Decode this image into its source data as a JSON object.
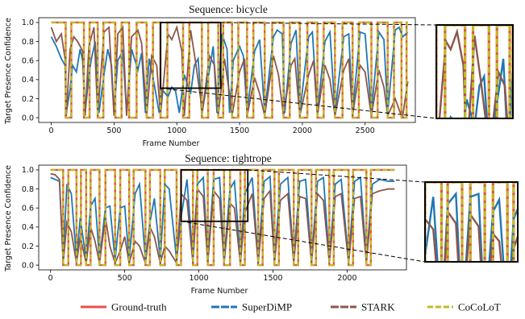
{
  "colors": {
    "ground_truth": "#e8504a",
    "superdimp": "#1f77b4",
    "stark": "#8c564b",
    "cocolot": "#bcbd22"
  },
  "legend": [
    "Ground-truth",
    "SuperDiMP",
    "STARK",
    "CoCoLoT"
  ],
  "chart_data": [
    {
      "type": "line",
      "title": "Sequence: bicycle",
      "xlabel": "Frame Number",
      "ylabel": "Target Presence Confidence",
      "xlim": [
        -100,
        2900
      ],
      "ylim": [
        -0.05,
        1.05
      ],
      "xticks": [
        0,
        500,
        1000,
        1500,
        2000,
        2500
      ],
      "yticks": [
        0.0,
        0.2,
        0.4,
        0.6,
        0.8,
        1.0
      ],
      "ytick_labels": [
        "0.0",
        "0.2",
        "0.4",
        "0.6",
        "0.8",
        "1.0"
      ],
      "x_end": 2840,
      "absent_intervals": [
        [
          115,
          160
        ],
        [
          260,
          305
        ],
        [
          370,
          415
        ],
        [
          510,
          560
        ],
        [
          620,
          680
        ],
        [
          760,
          810
        ],
        [
          870,
          925
        ],
        [
          1050,
          1100
        ],
        [
          1200,
          1250
        ],
        [
          1330,
          1370
        ],
        [
          1440,
          1490
        ],
        [
          1560,
          1610
        ],
        [
          1700,
          1760
        ],
        [
          1850,
          1900
        ],
        [
          1980,
          2040
        ],
        [
          2120,
          2170
        ],
        [
          2260,
          2320
        ],
        [
          2400,
          2450
        ],
        [
          2550,
          2600
        ],
        [
          2680,
          2730
        ],
        [
          2790,
          2830
        ]
      ],
      "superdimp": {
        "x": [
          0,
          40,
          80,
          110,
          120,
          150,
          170,
          200,
          230,
          250,
          270,
          300,
          320,
          350,
          380,
          420,
          450,
          480,
          500,
          530,
          570,
          600,
          640,
          690,
          720,
          750,
          780,
          820,
          860,
          880,
          930,
          960,
          990,
          1020,
          1060,
          1110,
          1140,
          1170,
          1200,
          1260,
          1290,
          1320,
          1360,
          1400,
          1420,
          1450,
          1500,
          1530,
          1560,
          1620,
          1660,
          1700,
          1770,
          1800,
          1840,
          1860,
          1910,
          1950,
          1980,
          2050,
          2080,
          2120,
          2180,
          2220,
          2260,
          2330,
          2370,
          2400,
          2460,
          2500,
          2550,
          2610,
          2650,
          2680,
          2740,
          2770,
          2800,
          2840
        ],
        "y": [
          0.85,
          0.75,
          0.62,
          0.55,
          0.05,
          0.3,
          0.55,
          0.48,
          0.72,
          0.6,
          0.05,
          0.45,
          0.62,
          0.8,
          0.05,
          0.45,
          0.72,
          0.55,
          0.05,
          0.6,
          0.7,
          0.05,
          0.72,
          0.5,
          0.68,
          0.05,
          0.62,
          0.35,
          0.05,
          0.3,
          0.22,
          0.32,
          0.28,
          0.05,
          0.45,
          0.25,
          0.55,
          0.62,
          0.05,
          0.5,
          0.75,
          0.05,
          0.88,
          0.72,
          0.05,
          0.6,
          0.75,
          0.65,
          0.05,
          0.7,
          0.82,
          0.05,
          0.85,
          0.92,
          0.88,
          0.05,
          0.78,
          0.92,
          0.05,
          0.85,
          0.9,
          0.05,
          0.8,
          0.9,
          0.05,
          0.85,
          0.88,
          0.05,
          0.9,
          0.88,
          0.05,
          0.9,
          0.82,
          0.05,
          0.92,
          0.95,
          0.85,
          0.9
        ]
      },
      "stark": {
        "x": [
          0,
          40,
          80,
          110,
          120,
          150,
          180,
          210,
          250,
          270,
          300,
          340,
          370,
          420,
          460,
          500,
          530,
          570,
          600,
          640,
          690,
          720,
          760,
          800,
          840,
          870,
          930,
          960,
          1000,
          1040,
          1060,
          1110,
          1150,
          1190,
          1200,
          1260,
          1300,
          1330,
          1380,
          1420,
          1440,
          1500,
          1540,
          1560,
          1620,
          1660,
          1700,
          1770,
          1810,
          1850,
          1910,
          1940,
          1980,
          2050,
          2090,
          2120,
          2180,
          2220,
          2260,
          2330,
          2370,
          2400,
          2460,
          2500,
          2550,
          2610,
          2650,
          2680,
          2740,
          2780,
          2800,
          2840
        ],
        "y": [
          0.95,
          0.8,
          0.88,
          0.62,
          0.02,
          0.72,
          0.85,
          0.8,
          0.7,
          0.02,
          0.75,
          0.95,
          0.02,
          0.9,
          0.95,
          0.02,
          0.88,
          0.95,
          0.02,
          0.85,
          0.92,
          0.78,
          0.02,
          0.65,
          0.55,
          0.02,
          0.88,
          0.82,
          0.95,
          0.7,
          0.02,
          0.92,
          0.58,
          0.2,
          0.02,
          0.65,
          0.55,
          0.02,
          0.62,
          0.25,
          0.02,
          0.48,
          0.62,
          0.02,
          0.42,
          0.25,
          0.02,
          0.65,
          0.45,
          0.02,
          0.55,
          0.62,
          0.02,
          0.45,
          0.6,
          0.02,
          0.55,
          0.4,
          0.02,
          0.5,
          0.62,
          0.02,
          0.55,
          0.48,
          0.02,
          0.5,
          0.32,
          0.02,
          0.2,
          0.05,
          0.02,
          0.38
        ]
      }
    },
    {
      "type": "line",
      "title": "Sequence: tightrope",
      "xlabel": "Frame Number",
      "ylabel": "Target Presence Confidence",
      "xlim": [
        -80,
        2400
      ],
      "ylim": [
        -0.05,
        1.05
      ],
      "xticks": [
        0,
        500,
        1000,
        1500,
        2000
      ],
      "yticks": [
        0.0,
        0.2,
        0.4,
        0.6,
        0.8,
        1.0
      ],
      "ytick_labels": [
        "0.0",
        "0.2",
        "0.4",
        "0.6",
        "0.8",
        "1.0"
      ],
      "x_end": 2320,
      "absent_intervals": [
        [
          85,
          120
        ],
        [
          175,
          205
        ],
        [
          240,
          270
        ],
        [
          330,
          370
        ],
        [
          435,
          470
        ],
        [
          530,
          560
        ],
        [
          640,
          670
        ],
        [
          740,
          770
        ],
        [
          850,
          880
        ],
        [
          960,
          990
        ],
        [
          1060,
          1100
        ],
        [
          1170,
          1210
        ],
        [
          1280,
          1310
        ],
        [
          1400,
          1430
        ],
        [
          1510,
          1540
        ],
        [
          1640,
          1670
        ],
        [
          1760,
          1790
        ],
        [
          1880,
          1910
        ],
        [
          2010,
          2040
        ],
        [
          2130,
          2160
        ]
      ],
      "superdimp": {
        "x": [
          0,
          30,
          60,
          85,
          110,
          140,
          175,
          200,
          240,
          270,
          300,
          330,
          370,
          400,
          435,
          470,
          500,
          530,
          570,
          600,
          640,
          670,
          700,
          740,
          770,
          800,
          850,
          880,
          920,
          960,
          990,
          1030,
          1060,
          1100,
          1140,
          1170,
          1210,
          1240,
          1280,
          1310,
          1360,
          1400,
          1440,
          1480,
          1510,
          1550,
          1600,
          1640,
          1680,
          1720,
          1760,
          1800,
          1840,
          1880,
          1920,
          1960,
          2010,
          2050,
          2090,
          2130,
          2170,
          2220,
          2280,
          2320
        ],
        "y": [
          0.92,
          0.9,
          0.88,
          0.05,
          0.85,
          0.75,
          0.05,
          0.5,
          0.05,
          0.62,
          0.7,
          0.05,
          0.6,
          0.62,
          0.05,
          0.6,
          0.62,
          0.05,
          0.75,
          0.85,
          0.05,
          0.45,
          0.7,
          0.05,
          0.85,
          0.8,
          0.05,
          0.5,
          0.9,
          0.05,
          0.85,
          0.92,
          0.05,
          0.9,
          0.92,
          0.05,
          0.8,
          0.88,
          0.05,
          0.75,
          0.92,
          0.05,
          0.88,
          0.93,
          0.05,
          0.85,
          0.92,
          0.05,
          0.88,
          0.9,
          0.05,
          0.88,
          0.92,
          0.05,
          0.85,
          0.9,
          0.05,
          0.88,
          0.92,
          0.05,
          0.85,
          0.9,
          0.88,
          0.88
        ]
      },
      "stark": {
        "x": [
          0,
          30,
          60,
          85,
          110,
          140,
          175,
          200,
          240,
          270,
          300,
          330,
          370,
          400,
          435,
          470,
          500,
          530,
          570,
          600,
          640,
          670,
          700,
          740,
          770,
          800,
          850,
          880,
          920,
          960,
          990,
          1030,
          1060,
          1100,
          1140,
          1170,
          1210,
          1240,
          1280,
          1310,
          1360,
          1400,
          1440,
          1480,
          1510,
          1550,
          1600,
          1640,
          1680,
          1720,
          1760,
          1800,
          1840,
          1880,
          1920,
          1960,
          2010,
          2050,
          2090,
          2130,
          2170,
          2220,
          2280,
          2320
        ],
        "y": [
          0.96,
          0.95,
          0.9,
          0.02,
          0.45,
          0.35,
          0.02,
          0.3,
          0.02,
          0.4,
          0.25,
          0.02,
          0.5,
          0.2,
          0.02,
          0.15,
          0.3,
          0.02,
          0.25,
          0.2,
          0.02,
          0.4,
          0.3,
          0.02,
          0.2,
          0.15,
          0.02,
          0.75,
          0.68,
          0.02,
          0.8,
          0.72,
          0.02,
          0.78,
          0.7,
          0.02,
          0.65,
          0.6,
          0.02,
          0.55,
          0.75,
          0.02,
          0.7,
          0.78,
          0.02,
          0.68,
          0.75,
          0.02,
          0.72,
          0.7,
          0.02,
          0.75,
          0.68,
          0.02,
          0.72,
          0.75,
          0.02,
          0.7,
          0.72,
          0.02,
          0.75,
          0.78,
          0.8,
          0.8
        ]
      }
    }
  ]
}
